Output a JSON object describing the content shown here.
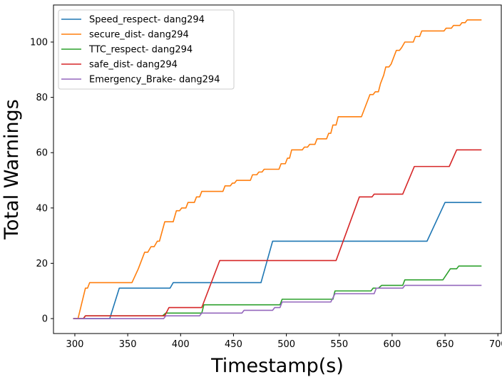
{
  "chart_data": {
    "type": "line",
    "title": "",
    "xlabel": "Timestamp(s)",
    "ylabel": "Total Warnings",
    "xlim": [
      279.8,
      703.2
    ],
    "ylim": [
      -5.4,
      113.4
    ],
    "xticks": [
      300,
      350,
      400,
      450,
      500,
      550,
      600,
      650,
      700
    ],
    "yticks": [
      0,
      20,
      40,
      60,
      80,
      100
    ],
    "grid": false,
    "legend_position": "top-left",
    "series": [
      {
        "name": "Speed_respect- dang294",
        "color": "#1f77b4",
        "points": [
          [
            299,
            0
          ],
          [
            333,
            0
          ],
          [
            342,
            11
          ],
          [
            390,
            11
          ],
          [
            393,
            13
          ],
          [
            476,
            13
          ],
          [
            487,
            28
          ],
          [
            633,
            28
          ],
          [
            650,
            42
          ],
          [
            684,
            42
          ]
        ]
      },
      {
        "name": "secure_dist- dang294",
        "color": "#ff7f0e",
        "points": [
          [
            299,
            0
          ],
          [
            303,
            0
          ],
          [
            310,
            11
          ],
          [
            312,
            11
          ],
          [
            314,
            13
          ],
          [
            354,
            13
          ],
          [
            360,
            18
          ],
          [
            366,
            24
          ],
          [
            369,
            24
          ],
          [
            372,
            26
          ],
          [
            375,
            26
          ],
          [
            378,
            28
          ],
          [
            380,
            28
          ],
          [
            385,
            35
          ],
          [
            393,
            35
          ],
          [
            396,
            39
          ],
          [
            399,
            39
          ],
          [
            401,
            40
          ],
          [
            405,
            40
          ],
          [
            407,
            42
          ],
          [
            413,
            42
          ],
          [
            415,
            44
          ],
          [
            418,
            44
          ],
          [
            420,
            46
          ],
          [
            440,
            46
          ],
          [
            442,
            48
          ],
          [
            447,
            48
          ],
          [
            449,
            49
          ],
          [
            451,
            49
          ],
          [
            453,
            50
          ],
          [
            466,
            50
          ],
          [
            468,
            52
          ],
          [
            472,
            52
          ],
          [
            474,
            53
          ],
          [
            477,
            53
          ],
          [
            479,
            54
          ],
          [
            493,
            54
          ],
          [
            495,
            56
          ],
          [
            499,
            56
          ],
          [
            501,
            58
          ],
          [
            503,
            58
          ],
          [
            505,
            61
          ],
          [
            515,
            61
          ],
          [
            517,
            62
          ],
          [
            520,
            62
          ],
          [
            522,
            63
          ],
          [
            527,
            63
          ],
          [
            529,
            65
          ],
          [
            538,
            65
          ],
          [
            540,
            67
          ],
          [
            542,
            67
          ],
          [
            544,
            70
          ],
          [
            547,
            70
          ],
          [
            549,
            73
          ],
          [
            571,
            73
          ],
          [
            575,
            77
          ],
          [
            577,
            79
          ],
          [
            579,
            81
          ],
          [
            582,
            81
          ],
          [
            584,
            82
          ],
          [
            587,
            82
          ],
          [
            589,
            85
          ],
          [
            592,
            88
          ],
          [
            594,
            91
          ],
          [
            597,
            91
          ],
          [
            599,
            92
          ],
          [
            601,
            94
          ],
          [
            604,
            97
          ],
          [
            607,
            97
          ],
          [
            609,
            98
          ],
          [
            612,
            100
          ],
          [
            620,
            100
          ],
          [
            622,
            102
          ],
          [
            626,
            102
          ],
          [
            628,
            104
          ],
          [
            649,
            104
          ],
          [
            651,
            105
          ],
          [
            656,
            105
          ],
          [
            658,
            106
          ],
          [
            664,
            106
          ],
          [
            666,
            107
          ],
          [
            669,
            107
          ],
          [
            671,
            108
          ],
          [
            684,
            108
          ]
        ]
      },
      {
        "name": "TTC_respect- dang294",
        "color": "#2ca02c",
        "points": [
          [
            299,
            0
          ],
          [
            308,
            0
          ],
          [
            310,
            1
          ],
          [
            383,
            1
          ],
          [
            386,
            2
          ],
          [
            420,
            2
          ],
          [
            422,
            5
          ],
          [
            494,
            5
          ],
          [
            496,
            7
          ],
          [
            544,
            7
          ],
          [
            546,
            10
          ],
          [
            580,
            10
          ],
          [
            582,
            11
          ],
          [
            587,
            11
          ],
          [
            590,
            12
          ],
          [
            610,
            12
          ],
          [
            612,
            14
          ],
          [
            648,
            14
          ],
          [
            655,
            18
          ],
          [
            661,
            18
          ],
          [
            663,
            19
          ],
          [
            684,
            19
          ]
        ]
      },
      {
        "name": "safe_dist- dang294",
        "color": "#d62728",
        "points": [
          [
            299,
            0
          ],
          [
            308,
            0
          ],
          [
            310,
            1
          ],
          [
            385,
            1
          ],
          [
            389,
            4
          ],
          [
            420,
            4
          ],
          [
            437,
            21
          ],
          [
            547,
            21
          ],
          [
            569,
            44
          ],
          [
            581,
            44
          ],
          [
            583,
            45
          ],
          [
            610,
            45
          ],
          [
            621,
            55
          ],
          [
            654,
            55
          ],
          [
            661,
            61
          ],
          [
            684,
            61
          ]
        ]
      },
      {
        "name": "Emergency_Brake- dang294",
        "color": "#9467bd",
        "points": [
          [
            299,
            0
          ],
          [
            384,
            0
          ],
          [
            386,
            1
          ],
          [
            418,
            1
          ],
          [
            420,
            2
          ],
          [
            458,
            2
          ],
          [
            460,
            3
          ],
          [
            487,
            3
          ],
          [
            489,
            4
          ],
          [
            494,
            4
          ],
          [
            496,
            6
          ],
          [
            542,
            6
          ],
          [
            546,
            9
          ],
          [
            583,
            9
          ],
          [
            585,
            11
          ],
          [
            610,
            11
          ],
          [
            612,
            12
          ],
          [
            684,
            12
          ]
        ]
      }
    ]
  }
}
